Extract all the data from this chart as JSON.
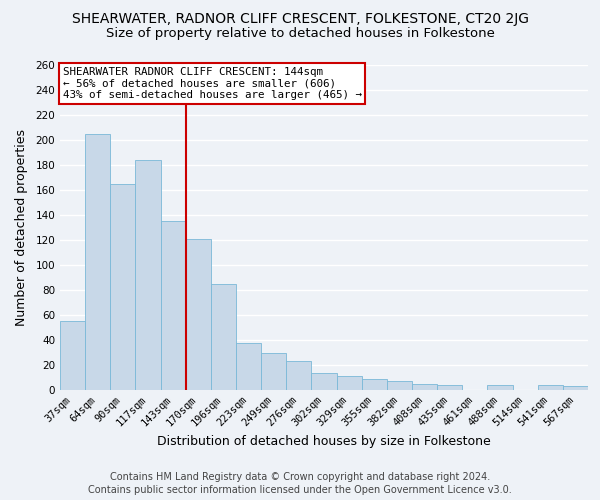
{
  "title": "SHEARWATER, RADNOR CLIFF CRESCENT, FOLKESTONE, CT20 2JG",
  "subtitle": "Size of property relative to detached houses in Folkestone",
  "xlabel": "Distribution of detached houses by size in Folkestone",
  "ylabel": "Number of detached properties",
  "bar_color": "#c8d8e8",
  "bar_edgecolor": "#7ab8d8",
  "categories": [
    "37sqm",
    "64sqm",
    "90sqm",
    "117sqm",
    "143sqm",
    "170sqm",
    "196sqm",
    "223sqm",
    "249sqm",
    "276sqm",
    "302sqm",
    "329sqm",
    "355sqm",
    "382sqm",
    "408sqm",
    "435sqm",
    "461sqm",
    "488sqm",
    "514sqm",
    "541sqm",
    "567sqm"
  ],
  "values": [
    55,
    205,
    165,
    184,
    135,
    121,
    85,
    38,
    30,
    23,
    14,
    11,
    9,
    7,
    5,
    4,
    0,
    4,
    0,
    4,
    3
  ],
  "ylim": [
    0,
    260
  ],
  "yticks": [
    0,
    20,
    40,
    60,
    80,
    100,
    120,
    140,
    160,
    180,
    200,
    220,
    240,
    260
  ],
  "prop_line_idx": 4.5,
  "annotation_line1": "SHEARWATER RADNOR CLIFF CRESCENT: 144sqm",
  "annotation_line2": "← 56% of detached houses are smaller (606)",
  "annotation_line3": "43% of semi-detached houses are larger (465) →",
  "annotation_box_color": "#ffffff",
  "annotation_box_edgecolor": "#cc0000",
  "line_color": "#cc0000",
  "footer1": "Contains HM Land Registry data © Crown copyright and database right 2024.",
  "footer2": "Contains public sector information licensed under the Open Government Licence v3.0.",
  "background_color": "#eef2f7",
  "grid_color": "#ffffff",
  "title_fontsize": 10,
  "subtitle_fontsize": 9.5,
  "tick_fontsize": 7.5,
  "label_fontsize": 9,
  "annotation_fontsize": 7.8,
  "footer_fontsize": 7
}
